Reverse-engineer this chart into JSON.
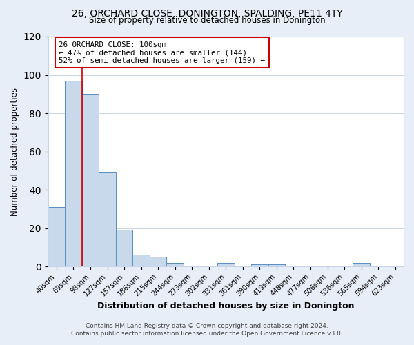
{
  "title": "26, ORCHARD CLOSE, DONINGTON, SPALDING, PE11 4TY",
  "subtitle": "Size of property relative to detached houses in Donington",
  "xlabel": "Distribution of detached houses by size in Donington",
  "ylabel": "Number of detached properties",
  "bin_labels": [
    "40sqm",
    "69sqm",
    "98sqm",
    "127sqm",
    "157sqm",
    "186sqm",
    "215sqm",
    "244sqm",
    "273sqm",
    "302sqm",
    "331sqm",
    "361sqm",
    "390sqm",
    "419sqm",
    "448sqm",
    "477sqm",
    "506sqm",
    "536sqm",
    "565sqm",
    "594sqm",
    "623sqm"
  ],
  "bar_values": [
    31,
    97,
    90,
    49,
    19,
    6,
    5,
    2,
    0,
    0,
    2,
    0,
    1,
    1,
    0,
    0,
    0,
    0,
    2,
    0,
    0
  ],
  "bar_color": "#c9d9ec",
  "bar_edge_color": "#5a8fc2",
  "red_line_bin_index": 2,
  "red_line_label": "26 ORCHARD CLOSE: 100sqm",
  "annotation_line1": "← 47% of detached houses are smaller (144)",
  "annotation_line2": "52% of semi-detached houses are larger (159) →",
  "ylim": [
    0,
    120
  ],
  "yticks": [
    0,
    20,
    40,
    60,
    80,
    100,
    120
  ],
  "footer_line1": "Contains HM Land Registry data © Crown copyright and database right 2024.",
  "footer_line2": "Contains public sector information licensed under the Open Government Licence v3.0.",
  "background_color": "#e8eef7",
  "plot_background_color": "#ffffff",
  "grid_color": "#c8d4e8"
}
